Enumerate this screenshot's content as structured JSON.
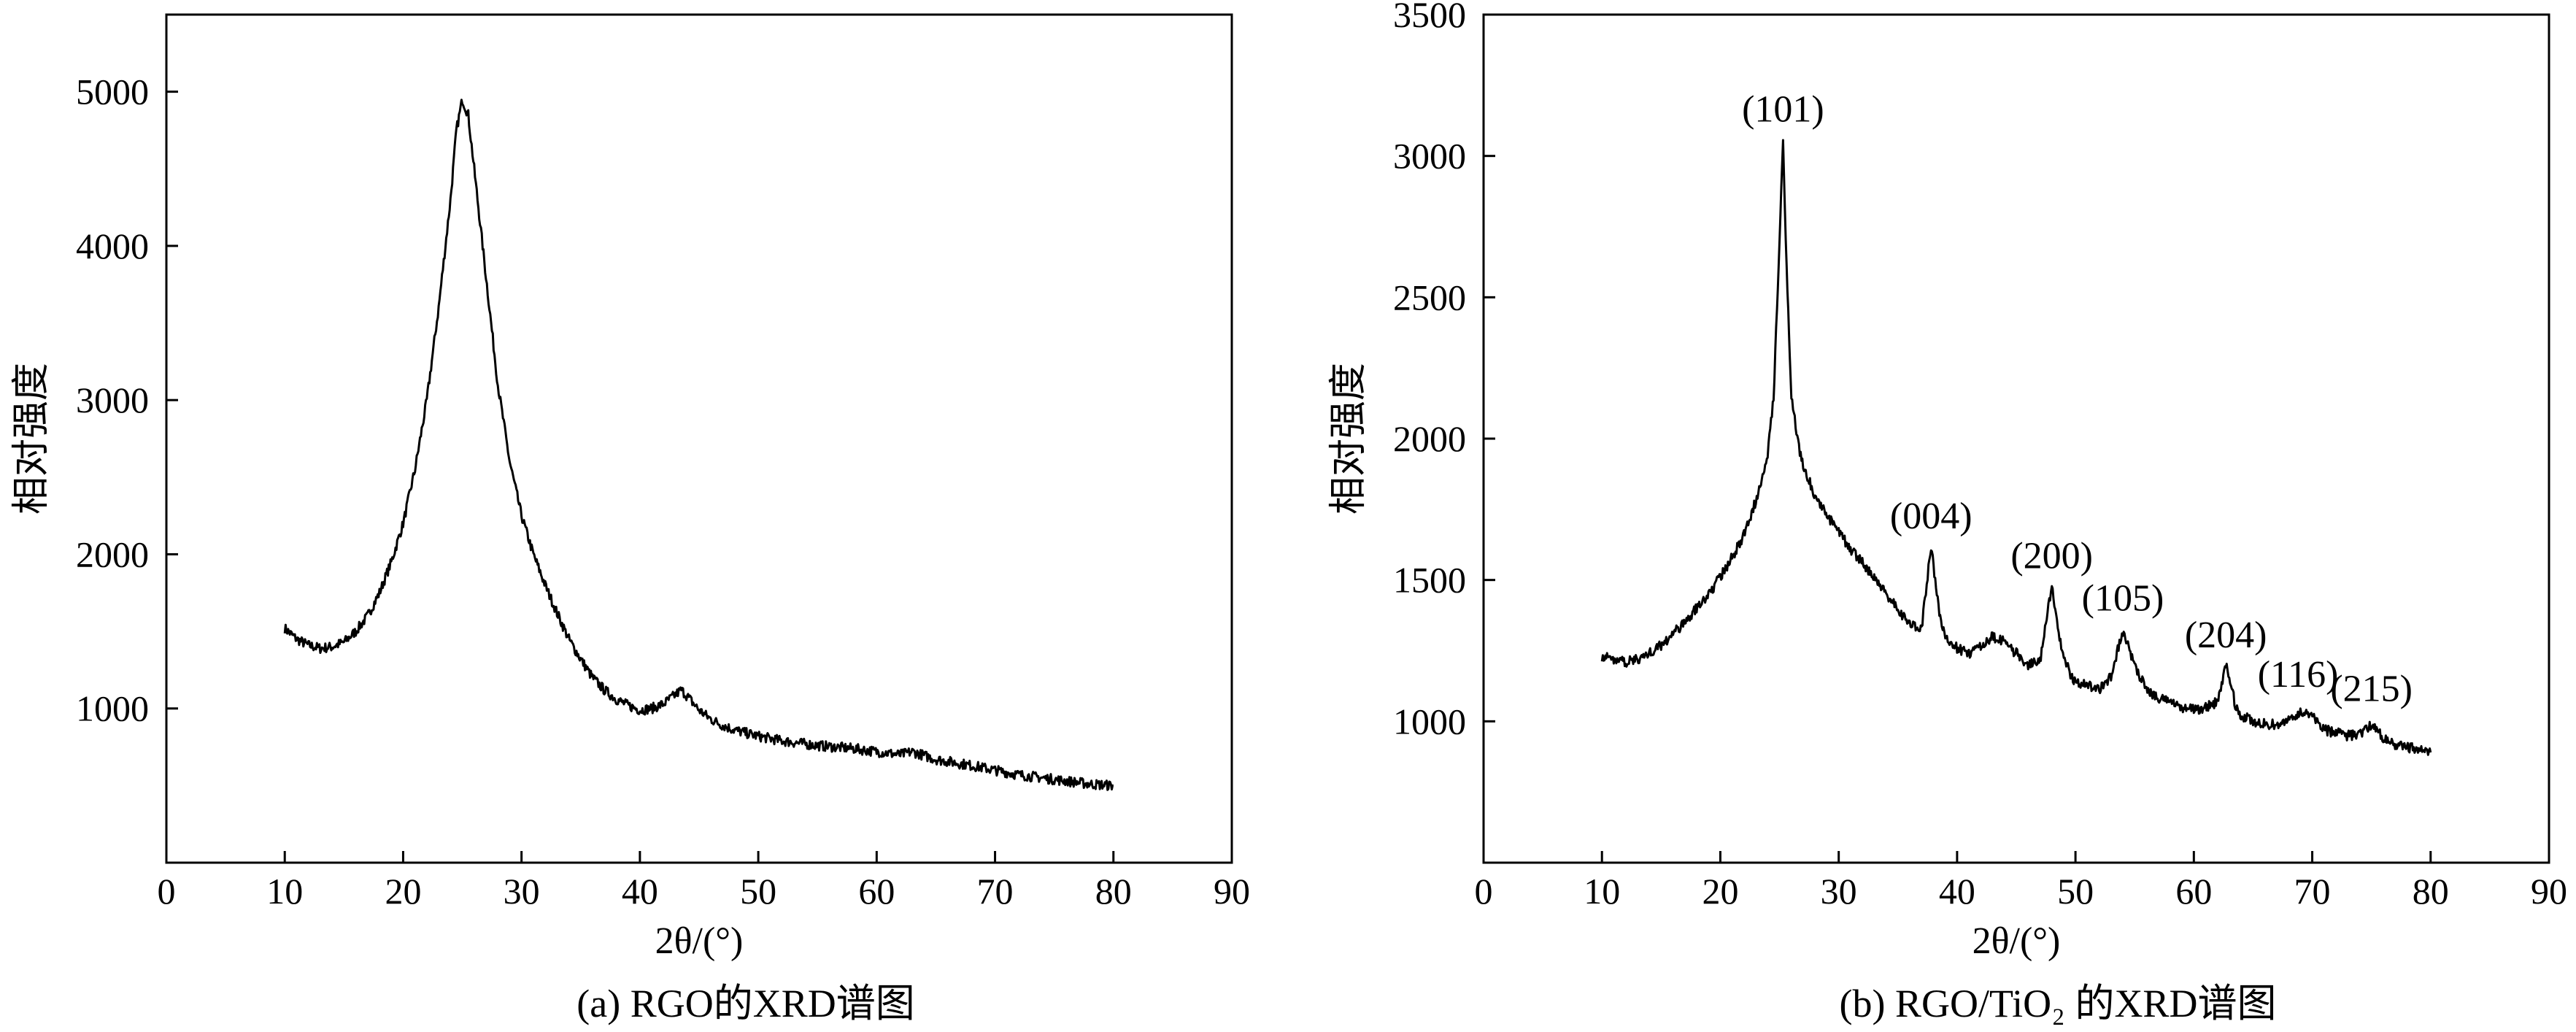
{
  "chart_data": [
    {
      "type": "line",
      "caption": "(a) RGO的XRD谱图",
      "xlabel": "2θ/(°)",
      "ylabel": "相对强度",
      "xlim": [
        0,
        90
      ],
      "ylim": [
        0,
        5500
      ],
      "xticks": [
        0,
        10,
        20,
        30,
        40,
        50,
        60,
        70,
        80,
        90
      ],
      "yticks": [
        1000,
        2000,
        3000,
        4000,
        5000
      ],
      "grid": false,
      "series": [
        {
          "x": [
            10,
            11,
            12,
            13,
            14,
            15,
            16,
            17,
            18,
            19,
            20,
            21,
            22,
            23,
            24,
            24.5,
            25,
            25.5,
            26,
            27,
            28,
            29,
            30,
            31,
            32,
            33,
            34,
            35,
            36,
            37,
            38,
            39,
            40,
            41,
            42,
            43,
            43.5,
            44,
            45,
            46,
            47,
            48,
            50,
            52,
            55,
            58,
            60,
            62,
            63,
            65,
            68,
            70,
            72,
            75,
            78,
            80
          ],
          "y": [
            1520,
            1450,
            1410,
            1390,
            1400,
            1430,
            1500,
            1600,
            1750,
            1950,
            2200,
            2550,
            3000,
            3600,
            4300,
            4750,
            4950,
            4850,
            4500,
            3800,
            3100,
            2600,
            2250,
            2000,
            1800,
            1620,
            1450,
            1320,
            1200,
            1120,
            1060,
            1020,
            990,
            1000,
            1030,
            1090,
            1120,
            1080,
            990,
            930,
            890,
            860,
            820,
            790,
            760,
            740,
            720,
            700,
            720,
            670,
            630,
            600,
            570,
            540,
            510,
            500
          ]
        }
      ]
    },
    {
      "type": "line",
      "caption": "(b) RGO/TiO₂ 的XRD谱图",
      "xlabel": "2θ/(°)",
      "ylabel": "相对强度",
      "xlim": [
        0,
        90
      ],
      "ylim": [
        500,
        3500
      ],
      "xticks": [
        0,
        10,
        20,
        30,
        40,
        50,
        60,
        70,
        80,
        90
      ],
      "yticks": [
        1000,
        1500,
        2000,
        2500,
        3000,
        3500
      ],
      "grid": false,
      "annotations": [
        {
          "text": "(101)",
          "x": 25.3,
          "y": 3060
        },
        {
          "text": "(004)",
          "x": 37.8,
          "y": 1620
        },
        {
          "text": "(200)",
          "x": 48.0,
          "y": 1480
        },
        {
          "text": "(105)",
          "x": 54.0,
          "y": 1330
        },
        {
          "text": "(204)",
          "x": 62.7,
          "y": 1200
        },
        {
          "text": "(116)",
          "x": 68.8,
          "y": 1060
        },
        {
          "text": "(215)",
          "x": 75.0,
          "y": 1010
        }
      ],
      "series": [
        {
          "x": [
            10,
            11,
            12,
            13,
            14,
            15,
            16,
            17,
            18,
            19,
            20,
            21,
            22,
            23,
            24,
            24.5,
            25,
            25.3,
            25.6,
            26,
            26.5,
            27,
            28,
            29,
            30,
            31,
            32,
            33,
            34,
            35,
            36,
            37,
            37.8,
            38.5,
            39,
            40,
            41,
            42,
            43,
            44,
            45,
            46,
            47,
            48,
            48.8,
            49.5,
            50,
            51,
            52,
            53,
            54,
            55,
            56,
            57,
            58,
            59,
            60,
            61,
            62,
            62.7,
            63.5,
            64,
            65,
            66,
            67,
            68,
            69,
            70,
            71,
            72,
            73,
            74,
            75,
            76,
            77,
            78,
            79,
            80
          ],
          "y": [
            1230,
            1220,
            1210,
            1220,
            1240,
            1270,
            1310,
            1350,
            1400,
            1450,
            1510,
            1580,
            1660,
            1780,
            1950,
            2150,
            2700,
            3060,
            2600,
            2150,
            2000,
            1900,
            1800,
            1730,
            1670,
            1610,
            1560,
            1510,
            1450,
            1400,
            1340,
            1330,
            1620,
            1380,
            1300,
            1260,
            1240,
            1270,
            1300,
            1280,
            1240,
            1200,
            1210,
            1480,
            1260,
            1170,
            1140,
            1130,
            1110,
            1160,
            1320,
            1200,
            1110,
            1080,
            1070,
            1050,
            1040,
            1050,
            1070,
            1200,
            1060,
            1020,
            1000,
            990,
            990,
            1000,
            1030,
            1020,
            970,
            960,
            950,
            950,
            990,
            940,
            920,
            910,
            900,
            890
          ]
        }
      ]
    }
  ]
}
